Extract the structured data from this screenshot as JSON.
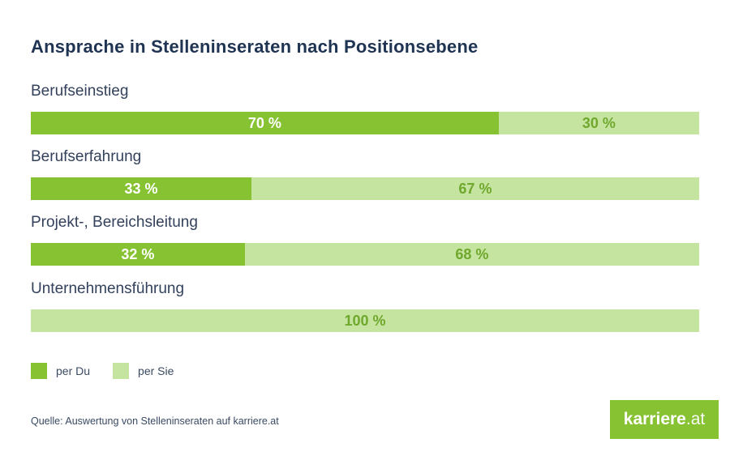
{
  "title": "Ansprache in Stelleninseraten nach Positionsebene",
  "source_note": "Quelle: Auswertung von Stelleninseraten auf karriere.at",
  "logo": {
    "text_bold": "karriere",
    "text_light": ".at"
  },
  "colors": {
    "background": "#FFFFFF",
    "green-dark": "#87C232",
    "green-light": "#C5E4A0",
    "title-text": "#1F3352",
    "label-text": "#33415C",
    "value-on-dark": "#FFFFFF",
    "value-on-light": "#6FA82C",
    "source-text": "#3A4A63"
  },
  "chart_data": {
    "type": "bar",
    "orientation": "horizontal-stacked",
    "title": "Ansprache in Stelleninseraten nach Positionsebene",
    "categories": [
      "Berufseinstieg",
      "Berufserfahrung",
      "Projekt-, Bereichsleitung",
      "Unternehmensführung"
    ],
    "series": [
      {
        "name": "per Du",
        "color": "#87C232",
        "values": [
          70,
          33,
          32,
          0
        ]
      },
      {
        "name": "per Sie",
        "color": "#C5E4A0",
        "values": [
          30,
          67,
          68,
          100
        ]
      }
    ],
    "value_labels": [
      [
        "70 %",
        "30 %"
      ],
      [
        "33 %",
        "67 %"
      ],
      [
        "32 %",
        "68 %"
      ],
      [
        "",
        "100 %"
      ]
    ],
    "xlim": [
      0,
      100
    ],
    "grid": false,
    "legend_position": "bottom-left"
  }
}
